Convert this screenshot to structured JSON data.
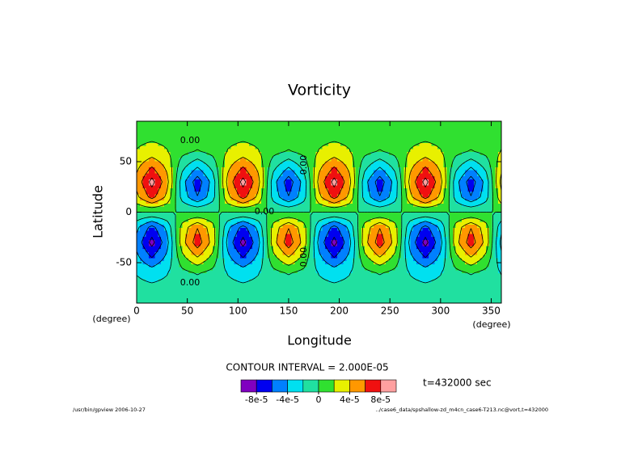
{
  "chart_data": {
    "type": "contour",
    "title": "Vorticity",
    "xlabel": "Longitude",
    "ylabel": "Latitude",
    "xunit": "(degree)",
    "yunit": "(degree)",
    "xlim": [
      0,
      360
    ],
    "ylim": [
      -90,
      90
    ],
    "xticks": [
      0,
      50,
      100,
      150,
      200,
      250,
      300,
      350
    ],
    "yticks": [
      -50,
      0,
      50
    ],
    "x": [
      0,
      15,
      30,
      45,
      60,
      75,
      90,
      105,
      120,
      135,
      150,
      165,
      180,
      195,
      210,
      225,
      240,
      255,
      270,
      285,
      300,
      315,
      330,
      345,
      360
    ],
    "y": [
      -90,
      -75,
      -60,
      -45,
      -30,
      -15,
      0,
      15,
      30,
      45,
      60,
      75,
      90
    ],
    "z": [
      [
        -1.5e-05,
        -1.5e-05,
        -1.5e-05,
        -1.5e-05,
        -1.5e-05,
        -1.5e-05,
        -1.5e-05,
        -1.5e-05,
        -1.5e-05,
        -1.5e-05,
        -1.5e-05,
        -1.5e-05,
        -1.5e-05,
        -1.5e-05,
        -1.5e-05,
        -1.5e-05,
        -1.5e-05,
        -1.5e-05,
        -1.5e-05,
        -1.5e-05,
        -1.5e-05,
        -1.5e-05,
        -1.5e-05,
        -1.5e-05,
        -1.5e-05
      ],
      [
        -1.5e-05,
        -1.6e-05,
        -1.5e-05,
        -1.4e-05,
        -1.3e-05,
        -1.4e-05,
        -1.5e-05,
        -1.6e-05,
        -1.5e-05,
        -1.4e-05,
        -1.3e-05,
        -1.4e-05,
        -1.5e-05,
        -1.6e-05,
        -1.5e-05,
        -1.4e-05,
        -1.3e-05,
        -1.4e-05,
        -1.5e-05,
        -1.6e-05,
        -1.5e-05,
        -1.4e-05,
        -1.3e-05,
        -1.4e-05,
        -1.5e-05
      ],
      [
        -2.1e-05,
        -2.8e-05,
        -2.1e-05,
        -6e-06,
        2e-06,
        -6e-06,
        -2.1e-05,
        -2.8e-05,
        -2.1e-05,
        -6e-06,
        2e-06,
        -6e-06,
        -2.1e-05,
        -2.8e-05,
        -2.1e-05,
        -6e-06,
        2e-06,
        -6e-06,
        -2.1e-05,
        -2.8e-05,
        -2.1e-05,
        -6e-06,
        2e-06,
        -6e-06,
        -2.1e-05
      ],
      [
        -3.5e-05,
        -6e-05,
        -3.5e-05,
        1.4e-05,
        3.9e-05,
        1.4e-05,
        -3.5e-05,
        -6e-05,
        -3.5e-05,
        1.4e-05,
        3.9e-05,
        1.4e-05,
        -3.5e-05,
        -6e-05,
        -3.5e-05,
        1.4e-05,
        3.9e-05,
        1.4e-05,
        -3.5e-05,
        -6e-05,
        -3.5e-05,
        1.4e-05,
        3.9e-05,
        1.4e-05,
        -3.5e-05
      ],
      [
        -4.7e-05,
        -8.7e-05,
        -4.7e-05,
        3.2e-05,
        7.2e-05,
        3.2e-05,
        -4.7e-05,
        -8.7e-05,
        -4.7e-05,
        3.2e-05,
        7.2e-05,
        3.2e-05,
        -4.7e-05,
        -8.7e-05,
        -4.7e-05,
        3.2e-05,
        7.2e-05,
        3.2e-05,
        -4.7e-05,
        -8.7e-05,
        -4.7e-05,
        3.2e-05,
        7.2e-05,
        3.2e-05,
        -4.7e-05
      ],
      [
        -3.5e-05,
        -6.7e-05,
        -3.5e-05,
        2.8e-05,
        5.9e-05,
        2.8e-05,
        -3.5e-05,
        -6.7e-05,
        -3.5e-05,
        2.8e-05,
        5.9e-05,
        2.8e-05,
        -3.5e-05,
        -6.7e-05,
        -3.5e-05,
        2.8e-05,
        5.9e-05,
        2.8e-05,
        -3.5e-05,
        -6.7e-05,
        -3.5e-05,
        2.8e-05,
        5.9e-05,
        2.8e-05,
        -3.5e-05
      ],
      [
        0,
        0,
        0,
        0,
        0,
        0,
        0,
        0,
        0,
        0,
        0,
        0,
        0,
        0,
        0,
        0,
        0,
        0,
        0,
        0,
        0,
        0,
        0,
        0,
        0
      ],
      [
        3.5e-05,
        6.7e-05,
        3.5e-05,
        -2.8e-05,
        -5.9e-05,
        -2.8e-05,
        3.5e-05,
        6.7e-05,
        3.5e-05,
        -2.8e-05,
        -5.9e-05,
        -2.8e-05,
        3.5e-05,
        6.7e-05,
        3.5e-05,
        -2.8e-05,
        -5.9e-05,
        -2.8e-05,
        3.5e-05,
        6.7e-05,
        3.5e-05,
        -2.8e-05,
        -5.9e-05,
        -2.8e-05,
        3.5e-05
      ],
      [
        4.7e-05,
        8.7e-05,
        4.7e-05,
        -3.2e-05,
        -7.2e-05,
        -3.2e-05,
        4.7e-05,
        8.7e-05,
        4.7e-05,
        -3.2e-05,
        -7.2e-05,
        -3.2e-05,
        4.7e-05,
        8.7e-05,
        4.7e-05,
        -3.2e-05,
        -7.2e-05,
        -3.2e-05,
        4.7e-05,
        8.7e-05,
        4.7e-05,
        -3.2e-05,
        -7.2e-05,
        -3.2e-05,
        4.7e-05
      ],
      [
        3.5e-05,
        6e-05,
        3.5e-05,
        -1.4e-05,
        -3.9e-05,
        -1.4e-05,
        3.5e-05,
        6e-05,
        3.5e-05,
        -1.4e-05,
        -3.9e-05,
        -1.4e-05,
        3.5e-05,
        6e-05,
        3.5e-05,
        -1.4e-05,
        -3.9e-05,
        -1.4e-05,
        3.5e-05,
        6e-05,
        3.5e-05,
        -1.4e-05,
        -3.9e-05,
        -1.4e-05,
        3.5e-05
      ],
      [
        2.1e-05,
        2.8e-05,
        2.1e-05,
        6e-06,
        -2e-06,
        6e-06,
        2.1e-05,
        2.8e-05,
        2.1e-05,
        6e-06,
        -2e-06,
        6e-06,
        2.1e-05,
        2.8e-05,
        2.1e-05,
        6e-06,
        -2e-06,
        6e-06,
        2.1e-05,
        2.8e-05,
        2.1e-05,
        6e-06,
        -2e-06,
        6e-06,
        2.1e-05
      ],
      [
        1.5e-05,
        1.6e-05,
        1.5e-05,
        1.4e-05,
        1.3e-05,
        1.4e-05,
        1.5e-05,
        1.6e-05,
        1.5e-05,
        1.4e-05,
        1.3e-05,
        1.4e-05,
        1.5e-05,
        1.6e-05,
        1.5e-05,
        1.4e-05,
        1.3e-05,
        1.4e-05,
        1.5e-05,
        1.6e-05,
        1.5e-05,
        1.4e-05,
        1.3e-05,
        1.4e-05,
        1.5e-05
      ],
      [
        1.5e-05,
        1.5e-05,
        1.5e-05,
        1.5e-05,
        1.5e-05,
        1.5e-05,
        1.5e-05,
        1.5e-05,
        1.5e-05,
        1.5e-05,
        1.5e-05,
        1.5e-05,
        1.5e-05,
        1.5e-05,
        1.5e-05,
        1.5e-05,
        1.5e-05,
        1.5e-05,
        1.5e-05,
        1.5e-05,
        1.5e-05,
        1.5e-05,
        1.5e-05,
        1.5e-05,
        1.5e-05
      ]
    ],
    "contour_label": "0.00",
    "contour_interval": "CONTOUR INTERVAL = 2.000E-05",
    "colorbar": {
      "levels": [
        -0.0001,
        -8e-05,
        -6e-05,
        -4e-05,
        -2e-05,
        0,
        2e-05,
        4e-05,
        6e-05,
        8e-05,
        0.0001
      ],
      "colors": [
        "#8000c0",
        "#0000f0",
        "#0080ff",
        "#00e0f0",
        "#20e0a0",
        "#30e030",
        "#e8f000",
        "#ff9800",
        "#f01010",
        "#ffa0a0"
      ],
      "ticks": [
        {
          "value": -8e-05,
          "label": "-8e-5"
        },
        {
          "value": -4e-05,
          "label": "-4e-5"
        },
        0,
        {
          "value": 4e-05,
          "label": "4e-5"
        },
        {
          "value": 8e-05,
          "label": "8e-5"
        }
      ]
    },
    "time_label": "t=432000 sec",
    "footer_left": "/usr/bin/gpview  2006-10-27",
    "footer_right": "../case6_data/spshallow-zd_m4cn_case6-T213.nc@vort,t=432000"
  }
}
